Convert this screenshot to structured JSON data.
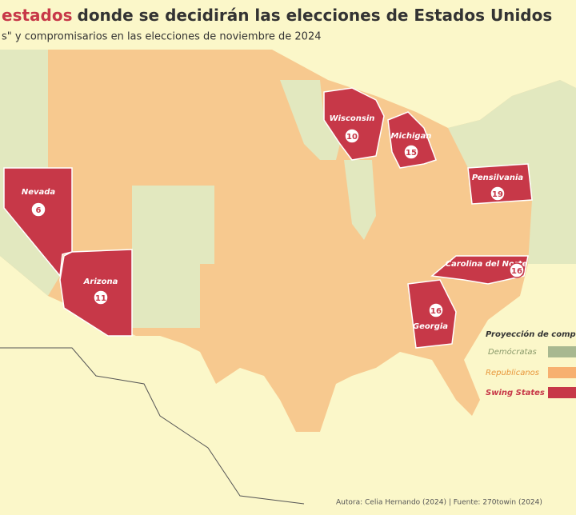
{
  "header": {
    "title_highlight": "estados",
    "title": "donde se decidirán las elecciones de Estados Unidos",
    "subtitle": "s\" y compromisarios en las elecciones de noviembre de 2024"
  },
  "states": [
    {
      "label": "Nevada",
      "votes": 6
    },
    {
      "label": "Arizona",
      "votes": 11
    },
    {
      "label": "Wisconsin",
      "votes": 10
    },
    {
      "label": "Michigan",
      "votes": 15
    },
    {
      "label": "Pensilvania",
      "votes": 19
    },
    {
      "label": "Carolina del Norte",
      "votes": 16
    },
    {
      "label": "Georgia",
      "votes": 16
    }
  ],
  "legend": {
    "title": "Proyección de compr",
    "items": [
      "Demócratas",
      "Republicanos",
      "Swing States"
    ]
  },
  "footer": {
    "source": "Autora: Celia Hernando (2024) | Fuente: 270towin (2024)"
  }
}
